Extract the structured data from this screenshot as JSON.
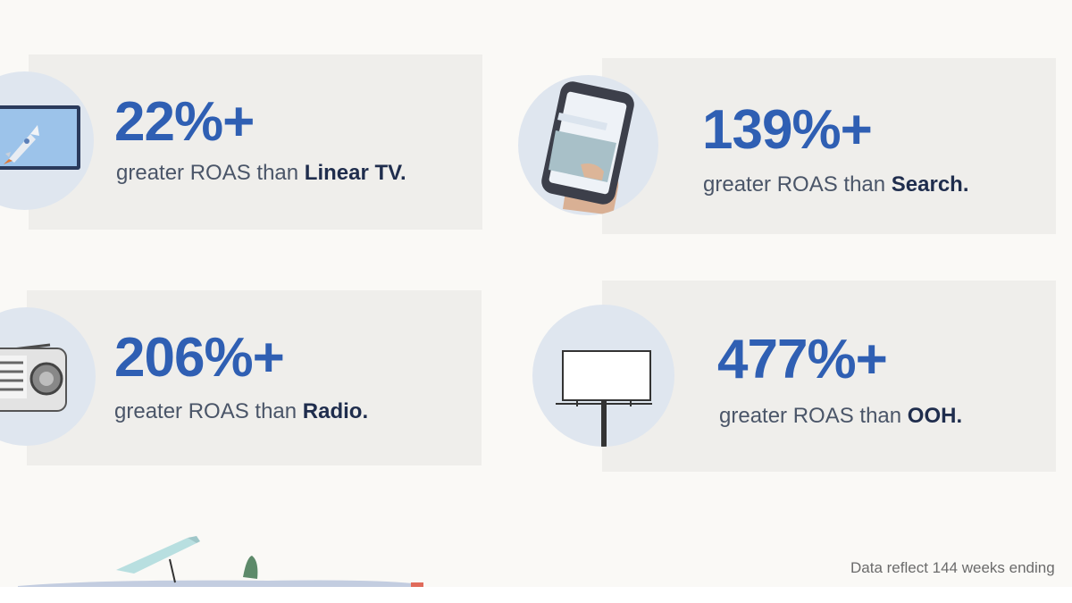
{
  "stats": [
    {
      "value": "22%+",
      "prefix": "greater ROAS than ",
      "channel": "Linear TV."
    },
    {
      "value": "139%+",
      "prefix": "greater ROAS than ",
      "channel": "Search."
    },
    {
      "value": "206%+",
      "prefix": "greater ROAS than ",
      "channel": "Radio."
    },
    {
      "value": "477%+",
      "prefix": "greater ROAS than ",
      "channel": "OOH."
    }
  ],
  "footnote": "Data reflect 144 weeks ending",
  "icons": [
    "tv-rocket-icon",
    "smartphone-hand-icon",
    "radio-icon",
    "billboard-icon",
    "convertible-car-icon"
  ],
  "colors": {
    "accent": "#2f5fb3",
    "card": "#efeeeb",
    "background": "#faf9f6",
    "circle": "#dfe6ef"
  }
}
